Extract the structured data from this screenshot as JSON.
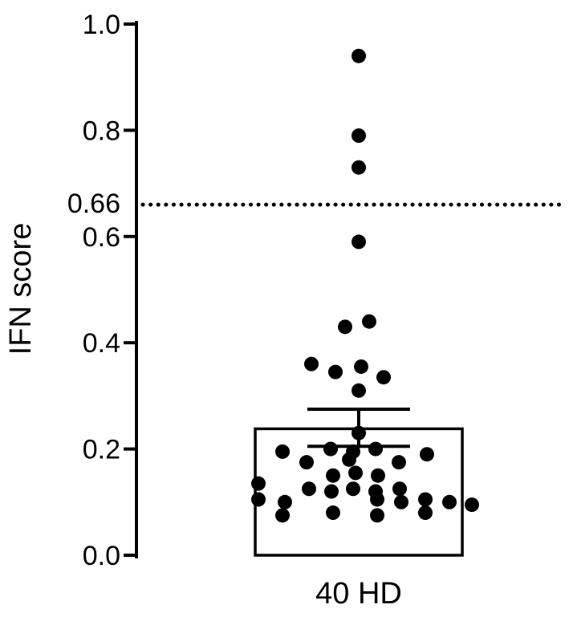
{
  "chart_data": {
    "type": "scatter",
    "subtype": "bar-with-scatter-dots",
    "title": "",
    "xlabel": "",
    "ylabel": "IFN score",
    "categories": [
      "40 HD"
    ],
    "ylim": [
      0.0,
      1.0
    ],
    "yticks": [
      0.0,
      0.2,
      0.4,
      0.6,
      0.8,
      1.0
    ],
    "ytick_labels": [
      "0.0",
      "0.2",
      "0.4",
      "0.6",
      "0.8",
      "1.0"
    ],
    "grid": false,
    "legend": "none",
    "threshold": {
      "value": 0.66,
      "label": "0.66",
      "style": "dotted"
    },
    "bar": {
      "mean": 0.238,
      "error_upper": 0.275,
      "error_lower": 0.205
    },
    "n_points": 40,
    "points": [
      {
        "v": 0.94,
        "dx": 0
      },
      {
        "v": 0.79,
        "dx": 0
      },
      {
        "v": 0.73,
        "dx": 0
      },
      {
        "v": 0.59,
        "dx": 0
      },
      {
        "v": 0.44,
        "dx": 13
      },
      {
        "v": 0.43,
        "dx": -17
      },
      {
        "v": 0.36,
        "dx": -59
      },
      {
        "v": 0.345,
        "dx": -29
      },
      {
        "v": 0.355,
        "dx": 3
      },
      {
        "v": 0.335,
        "dx": 31
      },
      {
        "v": 0.31,
        "dx": 0
      },
      {
        "v": 0.23,
        "dx": 0
      },
      {
        "v": 0.2,
        "dx": -35
      },
      {
        "v": 0.195,
        "dx": -95
      },
      {
        "v": 0.195,
        "dx": -7
      },
      {
        "v": 0.2,
        "dx": 21
      },
      {
        "v": 0.19,
        "dx": 85
      },
      {
        "v": 0.175,
        "dx": -65
      },
      {
        "v": 0.18,
        "dx": -12
      },
      {
        "v": 0.175,
        "dx": 50
      },
      {
        "v": 0.15,
        "dx": -32
      },
      {
        "v": 0.155,
        "dx": -4
      },
      {
        "v": 0.15,
        "dx": 24
      },
      {
        "v": 0.135,
        "dx": -125
      },
      {
        "v": 0.125,
        "dx": -62
      },
      {
        "v": 0.12,
        "dx": -34
      },
      {
        "v": 0.125,
        "dx": -7
      },
      {
        "v": 0.12,
        "dx": 21
      },
      {
        "v": 0.125,
        "dx": 51
      },
      {
        "v": 0.105,
        "dx": -125
      },
      {
        "v": 0.1,
        "dx": -92
      },
      {
        "v": 0.105,
        "dx": 23
      },
      {
        "v": 0.1,
        "dx": 53
      },
      {
        "v": 0.105,
        "dx": 83
      },
      {
        "v": 0.1,
        "dx": 113
      },
      {
        "v": 0.095,
        "dx": 141
      },
      {
        "v": 0.075,
        "dx": -95
      },
      {
        "v": 0.08,
        "dx": -32
      },
      {
        "v": 0.075,
        "dx": 23
      },
      {
        "v": 0.08,
        "dx": 83
      }
    ],
    "colors": {
      "foreground": "#000000",
      "background": "#ffffff",
      "bar_fill": "#ffffff",
      "dot_fill": "#000000"
    }
  }
}
